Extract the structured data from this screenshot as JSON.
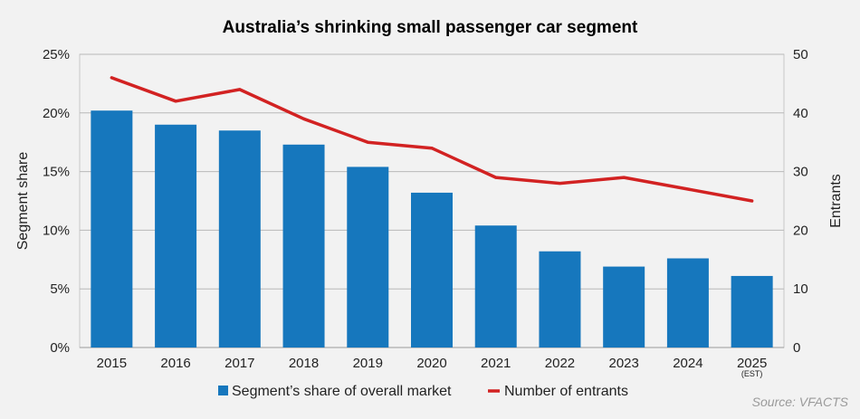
{
  "chart_data": {
    "type": "bar",
    "title": "Australia’s shrinking small passenger car segment",
    "categories": [
      "2015",
      "2016",
      "2017",
      "2018",
      "2019",
      "2020",
      "2021",
      "2022",
      "2023",
      "2024",
      "2025"
    ],
    "category_note": {
      "index": 10,
      "text": "(EST)"
    },
    "series": [
      {
        "name": "Segment’s share of overall market",
        "type": "bar",
        "axis": "left",
        "color": "#1677bd",
        "values": [
          20.2,
          19.0,
          18.5,
          17.3,
          15.4,
          13.2,
          10.4,
          8.2,
          6.9,
          7.6,
          6.1
        ]
      },
      {
        "name": "Number of entrants",
        "type": "line",
        "axis": "right",
        "color": "#d22222",
        "values": [
          46,
          42,
          44,
          39,
          35,
          34,
          29,
          28,
          29,
          27,
          25
        ]
      }
    ],
    "left_axis": {
      "label": "Segment share",
      "ylim": [
        0,
        25
      ],
      "ticks": [
        0,
        5,
        10,
        15,
        20,
        25
      ],
      "tick_labels": [
        "0%",
        "5%",
        "10%",
        "15%",
        "20%",
        "25%"
      ]
    },
    "right_axis": {
      "label": "Entrants",
      "ylim": [
        0,
        50
      ],
      "ticks": [
        0,
        10,
        20,
        30,
        40,
        50
      ],
      "tick_labels": [
        "0",
        "10",
        "20",
        "30",
        "40",
        "50"
      ]
    },
    "grid": true,
    "legend": "bottom-center",
    "source": "Source: VFACTS"
  }
}
